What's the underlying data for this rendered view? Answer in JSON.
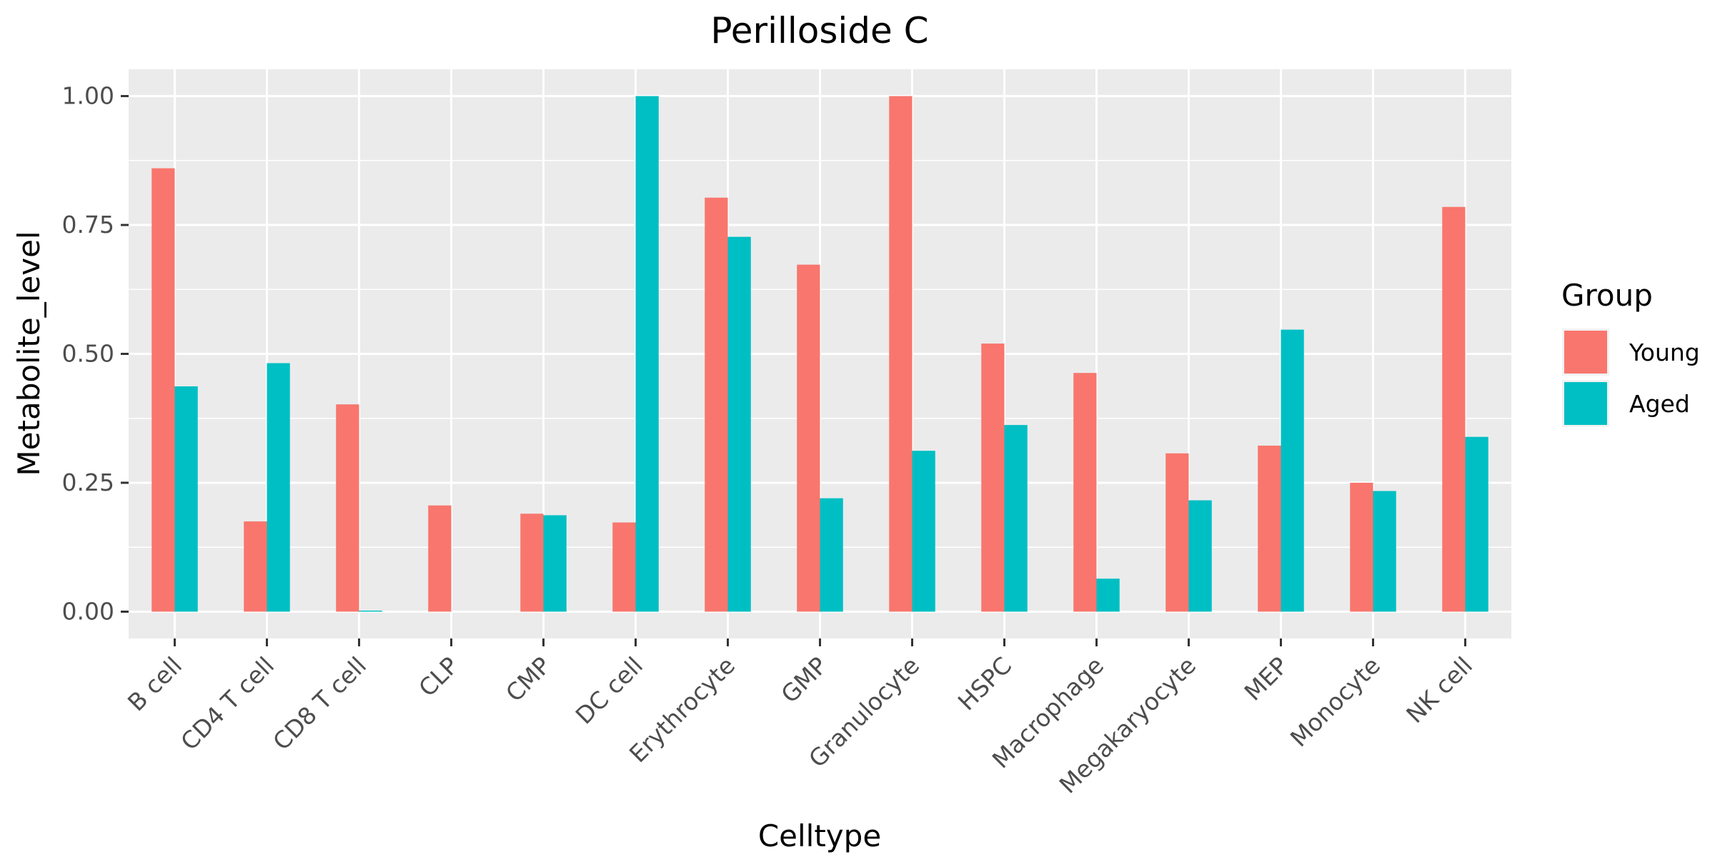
{
  "chart_data": {
    "type": "bar",
    "title": "Perilloside C",
    "xlabel": "Celltype",
    "ylabel": "Metabolite_level",
    "categories": [
      "B cell",
      "CD4 T cell",
      "CD8 T cell",
      "CLP",
      "CMP",
      "DC cell",
      "Erythrocyte",
      "GMP",
      "Granulocyte",
      "HSPC",
      "Macrophage",
      "Megakaryocyte",
      "MEP",
      "Monocyte",
      "NK cell"
    ],
    "series": [
      {
        "name": "Young",
        "color": "#F8766D",
        "values": [
          0.86,
          0.175,
          0.402,
          0.206,
          0.19,
          0.173,
          0.803,
          0.673,
          1.0,
          0.52,
          0.463,
          0.307,
          0.322,
          0.25,
          0.785
        ]
      },
      {
        "name": "Aged",
        "color": "#00BFC4",
        "values": [
          0.437,
          0.482,
          0.002,
          0.0,
          0.187,
          1.0,
          0.727,
          0.22,
          0.312,
          0.362,
          0.064,
          0.216,
          0.547,
          0.234,
          0.339
        ]
      }
    ],
    "yticks": [
      "0.00",
      "0.25",
      "0.50",
      "0.75",
      "1.00"
    ],
    "ylim": [
      -0.052,
      1.052
    ],
    "legend_title": "Group",
    "legend_position": "right",
    "grid": true,
    "panel_background": "#EBEBEB"
  }
}
